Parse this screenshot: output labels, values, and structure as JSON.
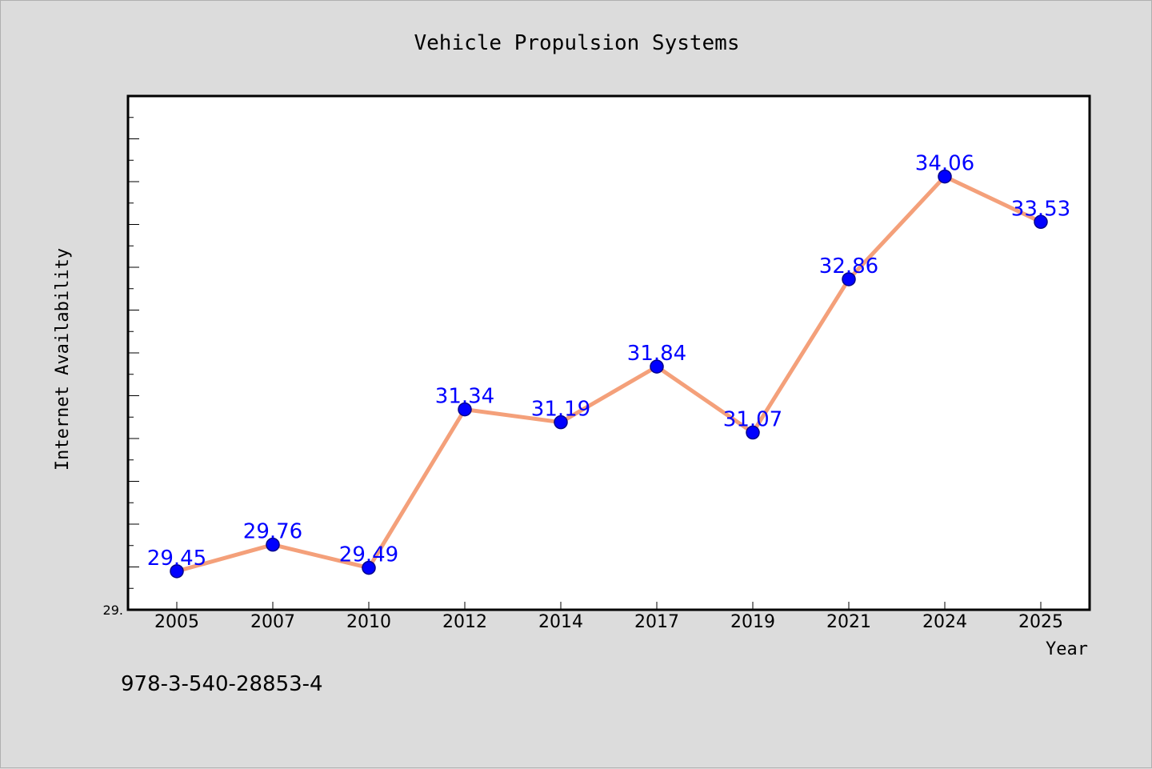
{
  "chart_data": {
    "type": "line",
    "title": "Vehicle Propulsion Systems",
    "xlabel": "Year",
    "ylabel": "Internet Availability",
    "categories": [
      "2005",
      "2007",
      "2010",
      "2012",
      "2014",
      "2017",
      "2019",
      "2021",
      "2024",
      "2025"
    ],
    "series": [
      {
        "values": [
          29.45,
          29.76,
          29.49,
          31.34,
          31.19,
          31.84,
          31.07,
          32.86,
          34.06,
          33.53
        ]
      }
    ],
    "data_labels": [
      "29.45",
      "29.76",
      "29.49",
      "31.34",
      "31.19",
      "31.84",
      "31.07",
      "32.86",
      "34.06",
      "33.53"
    ],
    "ylim": [
      29.0,
      35.0
    ],
    "y_tick_labels": [
      "29."
    ],
    "grid": false,
    "annotation": "978-3-540-28853-4",
    "colors": {
      "line": "#f4a07a",
      "marker": "#0000ff",
      "marker_edge": "#00008b",
      "data_label": "#0000ff",
      "background": "#dcdcdc",
      "plot_background": "#ffffff"
    }
  }
}
